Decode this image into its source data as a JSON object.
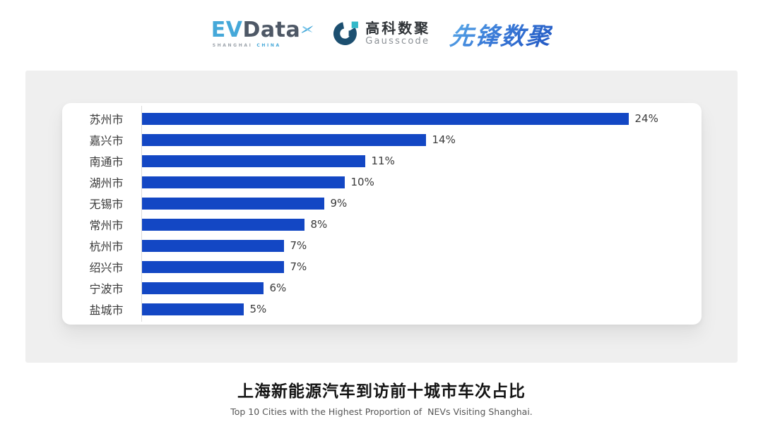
{
  "header": {
    "logos": [
      {
        "name": "evdata",
        "text_primary": "EV",
        "text_secondary": "Data",
        "tagline_left": "SHANGHAI",
        "tagline_right": "CHINA",
        "colors": {
          "primary": "#45A8D9",
          "secondary": "#4E5866"
        }
      },
      {
        "name": "gausscode",
        "cn": "高科数聚",
        "en": "Gausscode",
        "colors": {
          "icon_dark": "#1C4F70",
          "icon_cyan": "#33B8C9"
        }
      },
      {
        "name": "xianfeng-shuju",
        "text": "先锋数聚",
        "colors": {
          "gradient_from": "#5FB2EA",
          "gradient_to": "#2156C2"
        }
      }
    ]
  },
  "chart_data": {
    "type": "bar",
    "orientation": "horizontal",
    "title": "上海新能源汽车到访前十城市车次占比",
    "subtitle": "Top 10 Cities with the Highest Proportion of  NEVs Visiting Shanghai.",
    "categories": [
      "苏州市",
      "嘉兴市",
      "南通市",
      "湖州市",
      "无锡市",
      "常州市",
      "杭州市",
      "绍兴市",
      "宁波市",
      "盐城市"
    ],
    "values": [
      24,
      14,
      11,
      10,
      9,
      8,
      7,
      7,
      6,
      5
    ],
    "value_labels": [
      "24%",
      "14%",
      "11%",
      "10%",
      "9%",
      "8%",
      "7%",
      "7%",
      "6%",
      "5%"
    ],
    "unit": "%",
    "xlabel": "",
    "ylabel": "",
    "xlim": [
      0,
      26
    ],
    "grid": false,
    "legend": false,
    "bar_color": "#1347C4",
    "axis_line_color": "#DCDCDC"
  }
}
